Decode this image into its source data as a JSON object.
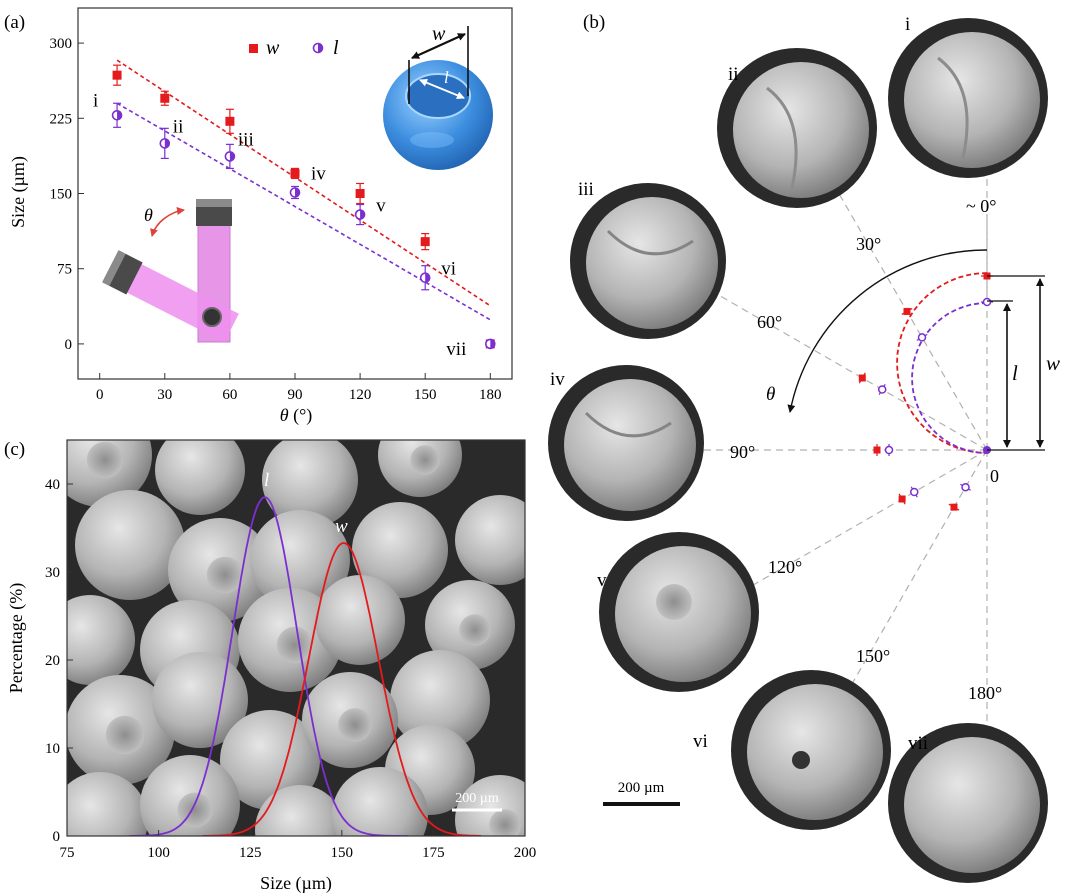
{
  "colors": {
    "w": "#e41a1c",
    "l": "#7b2fd1",
    "axis": "#333333",
    "sem_bg": "#2a2a2a",
    "sem_sphere": "#bdbdbd",
    "guide": "#b0b0b0"
  },
  "panels": {
    "a": "(a)",
    "b": "(b)",
    "c": "(c)"
  },
  "panel_a": {
    "ylabel": "Size (µm)",
    "xlabel_sym": "θ",
    "xlabel_unit": " (°)",
    "legend_w": "w",
    "legend_l": "l",
    "inset_theta": "θ",
    "inset_w": "w",
    "inset_l": "l",
    "sample_labels": [
      "i",
      "ii",
      "iii",
      "iv",
      "v",
      "vi",
      "vii"
    ]
  },
  "panel_b": {
    "angle_labels": [
      "~ 0°",
      "30°",
      "60°",
      "90°",
      "120°",
      "150°",
      "180°"
    ],
    "origin_label": "0",
    "theta": "θ",
    "dim_l": "l",
    "dim_w": "w",
    "sem_labels": [
      "i",
      "ii",
      "iii",
      "iv",
      "v",
      "vi",
      "vii"
    ],
    "scalebar": "200 µm"
  },
  "panel_c": {
    "ylabel": "Percentage (%)",
    "xlabel": "Size (µm)",
    "curve_l": "l",
    "curve_w": "w",
    "scalebar": "200 µm"
  },
  "chart_data": [
    {
      "type": "scatter",
      "panel": "a",
      "xlabel": "θ (°)",
      "ylabel": "Size (µm)",
      "xlim": [
        -10,
        190
      ],
      "ylim": [
        -35,
        335
      ],
      "xticks": [
        0,
        30,
        60,
        90,
        120,
        150,
        180
      ],
      "yticks": [
        0,
        75,
        150,
        225,
        300
      ],
      "series": [
        {
          "name": "w",
          "x": [
            8,
            30,
            60,
            90,
            120,
            150,
            180
          ],
          "y": [
            268,
            245,
            222,
            170,
            150,
            102,
            0
          ],
          "err": [
            10,
            7,
            12,
            5,
            10,
            8,
            2
          ]
        },
        {
          "name": "l",
          "x": [
            8,
            30,
            60,
            90,
            120,
            150,
            180
          ],
          "y": [
            228,
            200,
            187,
            151,
            129,
            66,
            0
          ],
          "err": [
            12,
            15,
            12,
            6,
            10,
            12,
            2
          ]
        }
      ],
      "fits": [
        {
          "series": "w",
          "x": [
            8,
            180
          ],
          "y": [
            283,
            38
          ]
        },
        {
          "series": "l",
          "x": [
            8,
            180
          ],
          "y": [
            240,
            24
          ]
        }
      ]
    },
    {
      "type": "line",
      "panel": "c",
      "xlabel": "Size (µm)",
      "ylabel": "Percentage (%)",
      "xlim": [
        75,
        200
      ],
      "ylim": [
        0,
        45
      ],
      "xticks": [
        75,
        100,
        125,
        150,
        175,
        200
      ],
      "yticks": [
        0,
        10,
        20,
        30,
        40
      ],
      "series": [
        {
          "name": "l",
          "mean": 129,
          "sd": 8.8,
          "peak": 38.5,
          "range": [
            92,
            168
          ]
        },
        {
          "name": "w",
          "mean": 150.5,
          "sd": 9.5,
          "peak": 33.3,
          "range": [
            112,
            188
          ]
        }
      ]
    }
  ]
}
